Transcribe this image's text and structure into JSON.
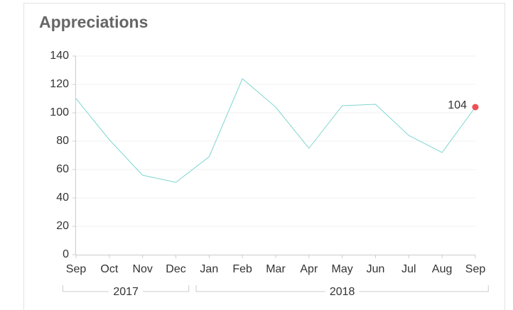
{
  "chart_data": {
    "type": "line",
    "title": "Appreciations",
    "categories": [
      "Sep",
      "Oct",
      "Nov",
      "Dec",
      "Jan",
      "Feb",
      "Mar",
      "Apr",
      "May",
      "Jun",
      "Jul",
      "Aug",
      "Sep"
    ],
    "values": [
      110,
      81,
      56,
      51,
      69,
      124,
      104,
      75,
      105,
      106,
      84,
      72,
      104
    ],
    "color": "#7fd6d2",
    "highlight_color": "#ef4f55",
    "ylim": [
      0,
      140
    ],
    "yticks": [
      0,
      20,
      40,
      60,
      80,
      100,
      120,
      140
    ],
    "grid": true,
    "groups": [
      {
        "label": "2017",
        "span": 4
      },
      {
        "label": "2018",
        "span": 9
      }
    ]
  }
}
